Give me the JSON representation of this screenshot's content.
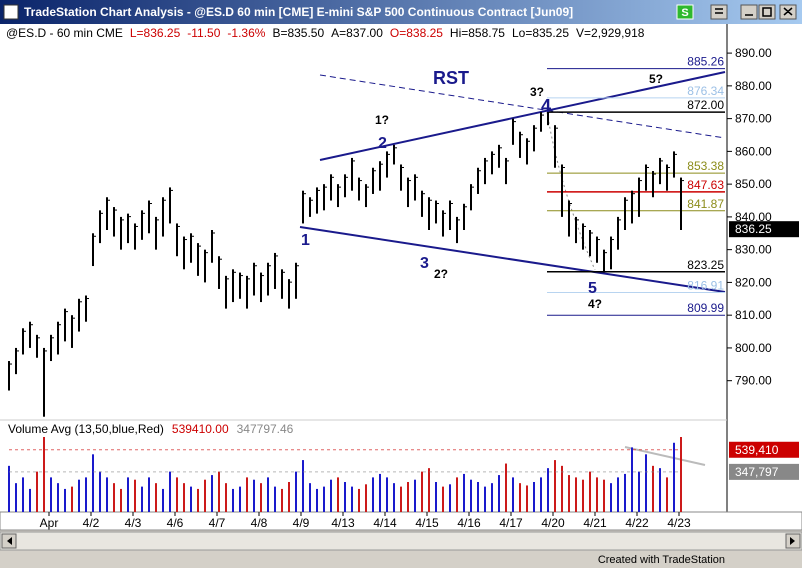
{
  "window": {
    "title": "TradeStation Chart Analysis - @ES.D  60 min  [CME] E-mini S&P 500 Continuous Contract [Jun09]",
    "s_button": "S"
  },
  "header": {
    "symbol": "@ES.D - 60 min  CME",
    "last": "L=836.25",
    "change": "-11.50",
    "change_pct": "-1.36%",
    "bid": "B=835.50",
    "ask": "A=837.00",
    "open": "O=838.25",
    "high": "Hi=858.75",
    "low": "Lo=835.25",
    "volume": "V=2,929,918"
  },
  "price_chart": {
    "ylim": [
      778,
      894
    ],
    "yticks": [
      {
        "value": 790,
        "label": "790.00"
      },
      {
        "value": 800,
        "label": "800.00"
      },
      {
        "value": 810,
        "label": "810.00"
      },
      {
        "value": 820,
        "label": "820.00"
      },
      {
        "value": 830,
        "label": "830.00"
      },
      {
        "value": 840,
        "label": "840.00"
      },
      {
        "value": 850,
        "label": "850.00"
      },
      {
        "value": 860,
        "label": "860.00"
      },
      {
        "value": 870,
        "label": "870.00"
      },
      {
        "value": 880,
        "label": "880.00"
      },
      {
        "value": 890,
        "label": "890.00"
      }
    ],
    "last_price": 836.25,
    "bars": [
      [
        787,
        796
      ],
      [
        792,
        800
      ],
      [
        798,
        806
      ],
      [
        800,
        808
      ],
      [
        797,
        804
      ],
      [
        779,
        800
      ],
      [
        796,
        804
      ],
      [
        798,
        808
      ],
      [
        802,
        812
      ],
      [
        800,
        810
      ],
      [
        805,
        815
      ],
      [
        808,
        816
      ],
      [
        825,
        835
      ],
      [
        832,
        842
      ],
      [
        836,
        846
      ],
      [
        834,
        843
      ],
      [
        830,
        840
      ],
      [
        832,
        841
      ],
      [
        830,
        838
      ],
      [
        833,
        842
      ],
      [
        835,
        845
      ],
      [
        830,
        840
      ],
      [
        834,
        846
      ],
      [
        838,
        849
      ],
      [
        828,
        838
      ],
      [
        824,
        834
      ],
      [
        826,
        835
      ],
      [
        822,
        832
      ],
      [
        820,
        830
      ],
      [
        826,
        836
      ],
      [
        818,
        828
      ],
      [
        812,
        822
      ],
      [
        814,
        824
      ],
      [
        815,
        823
      ],
      [
        812,
        822
      ],
      [
        816,
        826
      ],
      [
        814,
        823
      ],
      [
        816,
        826
      ],
      [
        818,
        829
      ],
      [
        815,
        824
      ],
      [
        812,
        821
      ],
      [
        815,
        826
      ],
      [
        838,
        848
      ],
      [
        840,
        846
      ],
      [
        841,
        849
      ],
      [
        842,
        850
      ],
      [
        845,
        853
      ],
      [
        843,
        850
      ],
      [
        846,
        853
      ],
      [
        848,
        858
      ],
      [
        845,
        852
      ],
      [
        843,
        850
      ],
      [
        847,
        855
      ],
      [
        848,
        857
      ],
      [
        852,
        860
      ],
      [
        856,
        862
      ],
      [
        848,
        856
      ],
      [
        843,
        852
      ],
      [
        845,
        853
      ],
      [
        840,
        848
      ],
      [
        836,
        846
      ],
      [
        838,
        845
      ],
      [
        834,
        842
      ],
      [
        836,
        845
      ],
      [
        832,
        840
      ],
      [
        836,
        844
      ],
      [
        842,
        850
      ],
      [
        847,
        855
      ],
      [
        850,
        858
      ],
      [
        853,
        860
      ],
      [
        855,
        862
      ],
      [
        850,
        858
      ],
      [
        862,
        870
      ],
      [
        858,
        866
      ],
      [
        856,
        864
      ],
      [
        860,
        868
      ],
      [
        866,
        872
      ],
      [
        868,
        874
      ],
      [
        855,
        868
      ],
      [
        840,
        856
      ],
      [
        834,
        845
      ],
      [
        832,
        840
      ],
      [
        830,
        838
      ],
      [
        828,
        836
      ],
      [
        826,
        834
      ],
      [
        823,
        830
      ],
      [
        824,
        834
      ],
      [
        830,
        840
      ],
      [
        836,
        846
      ],
      [
        838,
        848
      ],
      [
        840,
        852
      ],
      [
        848,
        856
      ],
      [
        846,
        854
      ],
      [
        850,
        858
      ],
      [
        848,
        856
      ],
      [
        852,
        860
      ],
      [
        836,
        852
      ]
    ],
    "levels": [
      {
        "value": 885.26,
        "color": "#1a1a8c"
      },
      {
        "value": 876.34,
        "color": "#b8d4f0"
      },
      {
        "value": {
          "value": 872,
          "label": "872.00"
        },
        "color": "#000000"
      },
      {
        "value": 853.38,
        "color": "#8c8c1a"
      },
      {
        "value": 847.63,
        "color": "#cc0000"
      },
      {
        "value": 841.87,
        "color": "#8c8c1a"
      },
      {
        "value": 823.25,
        "color": "#000000"
      },
      {
        "value": 816.91,
        "color": "#b8d4f0"
      },
      {
        "value": 809.99,
        "color": "#1a1a8c"
      }
    ],
    "annotations": [
      "RST",
      "1?",
      "2",
      "3?",
      "4",
      "5?",
      "1",
      "3",
      "2?",
      "5",
      "4?"
    ]
  },
  "dates": [
    "Apr",
    "4/2",
    "4/3",
    "4/6",
    "4/7",
    "4/8",
    "4/9",
    "4/13",
    "4/14",
    "4/15",
    "4/16",
    "4/17",
    "4/20",
    "4/21",
    "4/22",
    "4/23"
  ],
  "volume": {
    "legend": "Volume Avg (13,50,blue,Red)",
    "avg_fast_text": "539410.00",
    "avg_slow_text": "347797.46",
    "ylim": [
      0,
      650000
    ],
    "markers": [
      {
        "value": 539410,
        "label": "539,410"
      },
      {
        "value": 347797,
        "label": "347,797"
      }
    ],
    "values": [
      400000,
      250000,
      300000,
      200000,
      350000,
      850000,
      300000,
      250000,
      200000,
      220000,
      280000,
      300000,
      500000,
      350000,
      300000,
      250000,
      200000,
      300000,
      280000,
      220000,
      300000,
      250000,
      200000,
      350000,
      300000,
      250000,
      220000,
      200000,
      280000,
      320000,
      350000,
      250000,
      200000,
      220000,
      300000,
      280000,
      250000,
      300000,
      220000,
      200000,
      260000,
      350000,
      450000,
      250000,
      200000,
      220000,
      280000,
      300000,
      260000,
      220000,
      200000,
      240000,
      300000,
      330000,
      300000,
      250000,
      220000,
      260000,
      280000,
      350000,
      380000,
      260000,
      220000,
      240000,
      300000,
      330000,
      280000,
      260000,
      220000,
      250000,
      320000,
      420000,
      300000,
      250000,
      230000,
      260000,
      300000,
      380000,
      450000,
      400000,
      320000,
      300000,
      280000,
      350000,
      300000,
      280000,
      250000,
      300000,
      330000,
      560000,
      350000,
      500000,
      400000,
      380000,
      300000,
      600000,
      700000
    ]
  },
  "footer": "Created with TradeStation"
}
